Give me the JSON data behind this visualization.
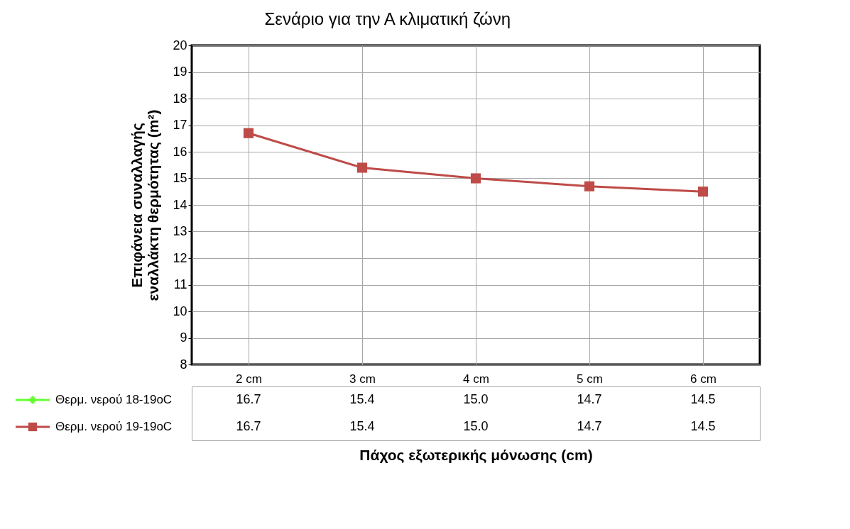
{
  "chart_data": {
    "type": "line",
    "title": "Σενάριο για την Α κλιματική ζώνη",
    "xlabel": "Πάχος εξωτερικής μόνωσης (cm)",
    "ylabel": "Επιφάνεια συναλλαγής\nεναλλάκτη θερμότητας (m²)",
    "categories": [
      "2 cm",
      "3 cm",
      "4 cm",
      "5 cm",
      "6 cm"
    ],
    "series": [
      {
        "name": "Θερμ. νερού 18-19oC",
        "color": "#66ff33",
        "marker": "diamond",
        "values": [
          null,
          null,
          null,
          null,
          null
        ],
        "value_labels": [
          "16.7",
          "15.4",
          "15.0",
          "14.7",
          "14.5"
        ]
      },
      {
        "name": "Θερμ. νερού 19-19oC",
        "color": "#be4b48",
        "marker": "square",
        "values": [
          16.7,
          15.4,
          15.0,
          14.7,
          14.5
        ],
        "value_labels": [
          "16.7",
          "15.4",
          "15.0",
          "14.7",
          "14.5"
        ]
      }
    ],
    "ylim": [
      8,
      20
    ],
    "yticks": [
      8,
      9,
      10,
      11,
      12,
      13,
      14,
      15,
      16,
      17,
      18,
      19,
      20
    ],
    "grid": true,
    "legend": "bottom"
  }
}
